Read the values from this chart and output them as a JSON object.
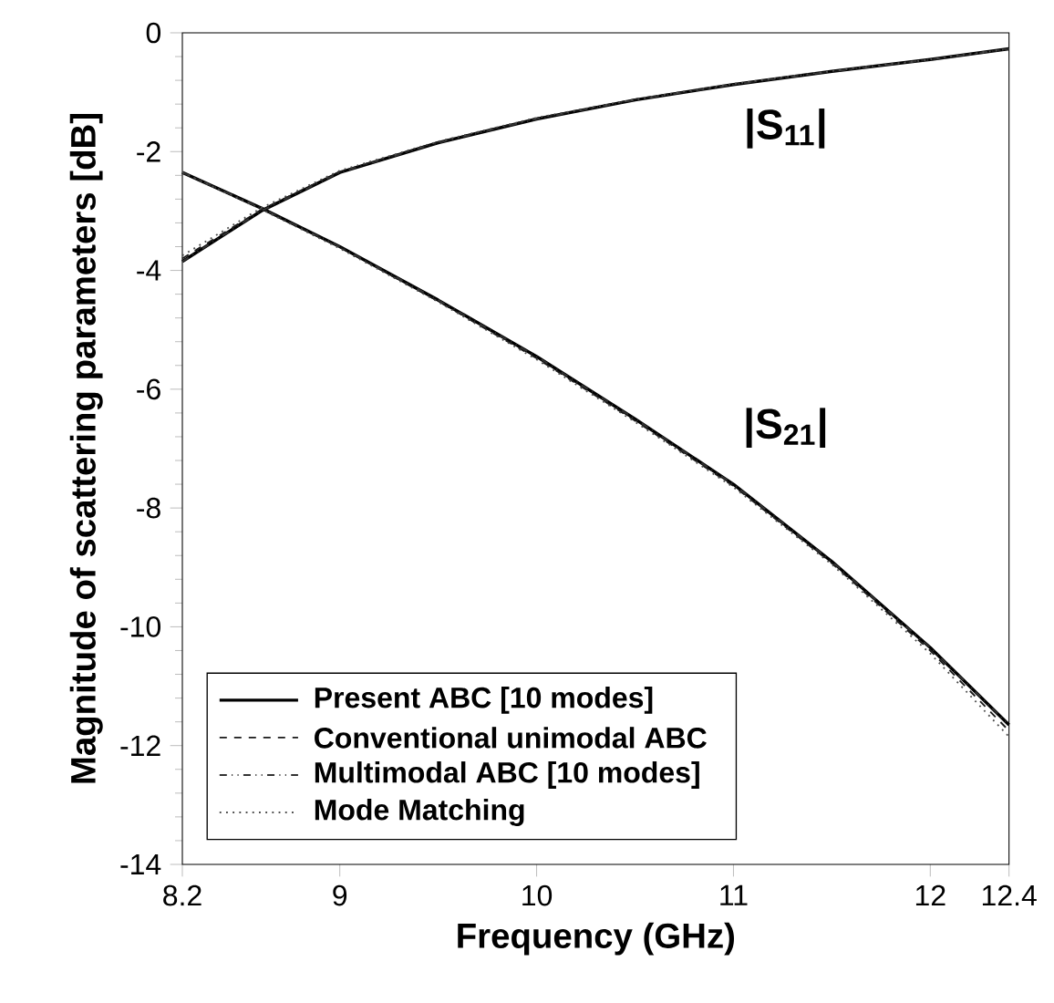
{
  "chart_data": {
    "type": "line",
    "xlabel": "Frequency  (GHz)",
    "ylabel": "Magnitude  of scattering parameters    [dB]",
    "xlim": [
      8.2,
      12.4
    ],
    "ylim": [
      -14,
      0
    ],
    "xticks": [
      8.2,
      9,
      10,
      11,
      12,
      12.4
    ],
    "yticks": [
      -14,
      -12,
      -10,
      -8,
      -6,
      -4,
      -2,
      0
    ],
    "grid": false,
    "legend": "bottom left",
    "marker": "none",
    "series": [
      {
        "name": "Present ABC [10 modes]",
        "color": "#000000",
        "line_style": "solid",
        "x": [
          8.2,
          8.6,
          9,
          9.5,
          10,
          10.5,
          11,
          11.5,
          12,
          12.4,
          null,
          8.2,
          8.6,
          9,
          9.5,
          10,
          10.5,
          11,
          11.5,
          12,
          12.4
        ],
        "values": [
          -2.35,
          -2.95,
          -3.6,
          -4.5,
          -5.45,
          -6.5,
          -7.6,
          -8.9,
          -10.35,
          -11.65,
          null,
          -3.85,
          -3.0,
          -2.35,
          -1.85,
          -1.45,
          -1.13,
          -0.87,
          -0.65,
          -0.45,
          -0.27
        ]
      },
      {
        "name": "Conventional unimodal ABC",
        "color": "#1a1a1a",
        "line_style": "dashed",
        "x": [
          8.2,
          8.6,
          9,
          9.5,
          10,
          10.5,
          11,
          11.5,
          12,
          12.4,
          null,
          8.2,
          8.6,
          9,
          9.5,
          10,
          10.5,
          11,
          11.5,
          12,
          12.4
        ],
        "values": [
          -2.35,
          -2.96,
          -3.61,
          -4.52,
          -5.48,
          -6.53,
          -7.63,
          -8.93,
          -10.4,
          -11.75,
          null,
          -3.8,
          -2.98,
          -2.34,
          -1.84,
          -1.44,
          -1.12,
          -0.87,
          -0.65,
          -0.45,
          -0.27
        ]
      },
      {
        "name": "Multimodal ABC [10 modes]",
        "color": "#333333",
        "line_style": "dashdot",
        "x": [
          8.2,
          8.6,
          9,
          9.5,
          10,
          10.5,
          11,
          11.5,
          12,
          12.4,
          null,
          8.2,
          8.6,
          9,
          9.5,
          10,
          10.5,
          11,
          11.5,
          12,
          12.4
        ],
        "values": [
          -2.35,
          -2.95,
          -3.6,
          -4.5,
          -5.45,
          -6.5,
          -7.6,
          -8.9,
          -10.35,
          -11.65,
          null,
          -3.85,
          -3.0,
          -2.35,
          -1.85,
          -1.45,
          -1.13,
          -0.87,
          -0.65,
          -0.45,
          -0.27
        ]
      },
      {
        "name": "Mode Matching",
        "color": "#4d4d4d",
        "line_style": "dotted",
        "x": [
          8.2,
          8.6,
          9,
          9.5,
          10,
          10.5,
          11,
          11.5,
          12,
          12.4,
          null,
          8.2,
          8.6,
          9,
          9.5,
          10,
          10.5,
          11,
          11.5,
          12,
          12.4
        ],
        "values": [
          -2.35,
          -2.97,
          -3.63,
          -4.53,
          -5.5,
          -6.55,
          -7.65,
          -8.95,
          -10.45,
          -11.85,
          null,
          -3.75,
          -2.95,
          -2.32,
          -1.83,
          -1.43,
          -1.12,
          -0.86,
          -0.64,
          -0.45,
          -0.27
        ]
      }
    ],
    "annotations": [
      "|S$_{11}$|",
      "|S$_{21}$|"
    ]
  }
}
